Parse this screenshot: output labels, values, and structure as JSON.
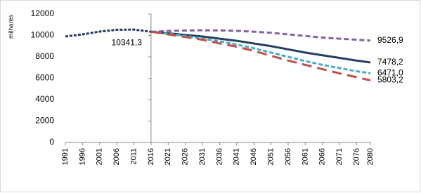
{
  "chart_data": {
    "type": "line",
    "y_label": "milhares",
    "x": [
      1991,
      1996,
      2001,
      2006,
      2011,
      2016,
      2021,
      2026,
      2031,
      2036,
      2041,
      2046,
      2051,
      2056,
      2061,
      2066,
      2071,
      2076,
      2080
    ],
    "xlim": [
      1991,
      2080
    ],
    "xticks": [
      1991,
      1996,
      2001,
      2006,
      2011,
      2016,
      2021,
      2026,
      2031,
      2036,
      2041,
      2046,
      2051,
      2056,
      2061,
      2066,
      2071,
      2076,
      2080
    ],
    "ylim": [
      0,
      12000
    ],
    "yticks": [
      0,
      2000,
      4000,
      6000,
      8000,
      10000,
      12000
    ],
    "y_axis_crosses": 2016,
    "grid": false,
    "series": [
      {
        "color": "#1f3864",
        "dash": "4 2",
        "values": [
          9900,
          10100,
          10360,
          10530,
          10550,
          10341.3,
          null,
          null,
          null,
          null,
          null,
          null,
          null,
          null,
          null,
          null,
          null,
          null,
          null
        ],
        "value_labels": [
          null,
          null,
          null,
          null,
          null,
          "10341,3",
          null,
          null,
          null,
          null,
          null,
          null,
          null,
          null,
          null,
          null,
          null,
          null,
          null
        ]
      },
      {
        "color": "#8064a2",
        "dash": "7 4",
        "values": [
          null,
          null,
          null,
          null,
          null,
          10341.3,
          10420,
          10460,
          10480,
          10470,
          10430,
          10350,
          10250,
          10100,
          9950,
          9800,
          9700,
          9600,
          9526.9
        ],
        "value_labels": [
          null,
          null,
          null,
          null,
          null,
          null,
          null,
          null,
          null,
          null,
          null,
          null,
          null,
          null,
          null,
          null,
          null,
          null,
          "9526,9"
        ]
      },
      {
        "color": "#243f60",
        "dash": "none",
        "values": [
          null,
          null,
          null,
          null,
          null,
          10341.3,
          10200,
          10050,
          9900,
          9700,
          9500,
          9250,
          9000,
          8700,
          8400,
          8150,
          7900,
          7650,
          7478.2
        ],
        "value_labels": [
          null,
          null,
          null,
          null,
          null,
          null,
          null,
          null,
          null,
          null,
          null,
          null,
          null,
          null,
          null,
          null,
          null,
          null,
          "7478,2"
        ]
      },
      {
        "color": "#4bacc6",
        "dash": "6 3",
        "values": [
          null,
          null,
          null,
          null,
          null,
          10341.3,
          10150,
          9950,
          9700,
          9450,
          9150,
          8800,
          8400,
          8000,
          7600,
          7250,
          6950,
          6650,
          6471.0
        ],
        "value_labels": [
          null,
          null,
          null,
          null,
          null,
          null,
          null,
          null,
          null,
          null,
          null,
          null,
          null,
          null,
          null,
          null,
          null,
          null,
          "6471,0"
        ]
      },
      {
        "color": "#c0504d",
        "dash": "14 8",
        "values": [
          null,
          null,
          null,
          null,
          null,
          10341.3,
          10100,
          9850,
          9600,
          9250,
          8950,
          8550,
          8100,
          7650,
          7250,
          6850,
          6450,
          6100,
          5803.2
        ],
        "value_labels": [
          null,
          null,
          null,
          null,
          null,
          null,
          null,
          null,
          null,
          null,
          null,
          null,
          null,
          null,
          null,
          null,
          null,
          null,
          "5803,2"
        ]
      }
    ]
  }
}
